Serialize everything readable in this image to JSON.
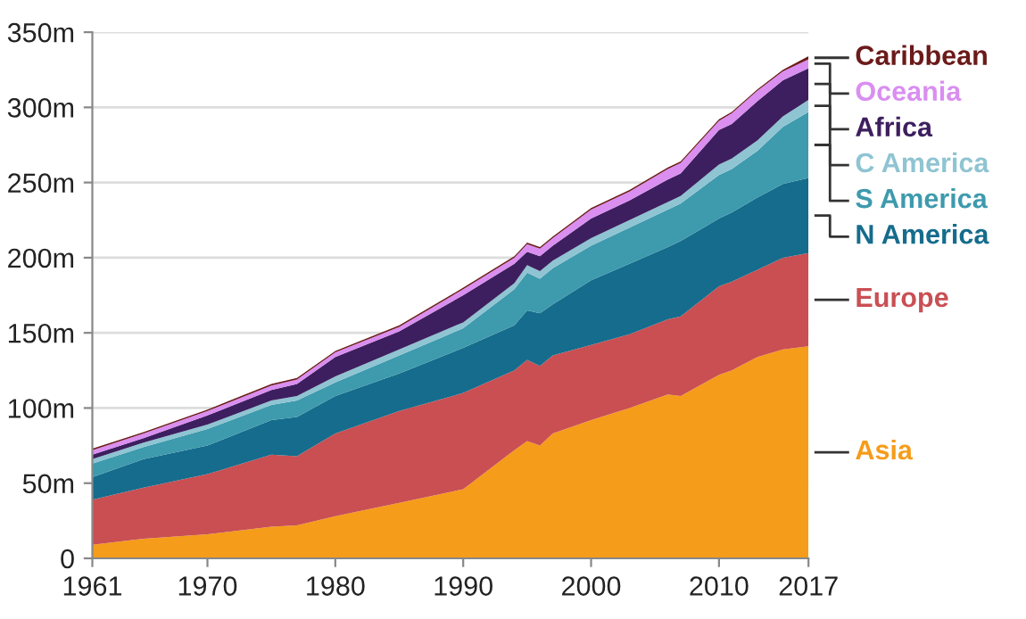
{
  "chart_data": {
    "type": "area",
    "stacked": true,
    "x": [
      1961,
      1965,
      1970,
      1975,
      1977,
      1980,
      1985,
      1990,
      1994,
      1995,
      1996,
      1997,
      2000,
      2003,
      2006,
      2007,
      2010,
      2011,
      2013,
      2015,
      2017
    ],
    "series": [
      {
        "name": "Asia",
        "color": "#f59c1a",
        "values": [
          9,
          13,
          16,
          21,
          22,
          28,
          37,
          46,
          72,
          78,
          75,
          83,
          92,
          100,
          109,
          108,
          122,
          125,
          134,
          139,
          141
        ]
      },
      {
        "name": "Europe",
        "color": "#c94f53",
        "values": [
          30,
          34,
          40,
          48,
          46,
          55,
          61,
          64,
          53,
          54,
          53,
          52,
          50,
          49,
          50,
          53,
          59,
          59,
          58,
          61,
          62
        ]
      },
      {
        "name": "N America",
        "color": "#156c8c",
        "values": [
          15,
          19,
          19,
          23,
          26,
          25,
          25,
          30,
          30,
          33,
          35,
          34,
          43,
          47,
          48,
          50,
          45,
          46,
          48,
          49,
          50
        ]
      },
      {
        "name": "S America",
        "color": "#3e9aad",
        "values": [
          9,
          8,
          11,
          10,
          11,
          9,
          12,
          13,
          24,
          25,
          23,
          24,
          23,
          24,
          25,
          25,
          29,
          29,
          31,
          38,
          44
        ]
      },
      {
        "name": "C America",
        "color": "#8fc4d2",
        "values": [
          3,
          3,
          3,
          3,
          3,
          4,
          4,
          4,
          4,
          5,
          5,
          5,
          5,
          5,
          5,
          5,
          7,
          7,
          7,
          7,
          8
        ]
      },
      {
        "name": "Africa",
        "color": "#3d1f5f",
        "values": [
          3,
          3,
          6,
          7,
          8,
          13,
          12,
          18,
          13,
          9,
          10,
          10,
          13,
          13,
          15,
          15,
          23,
          23,
          26,
          24,
          21
        ]
      },
      {
        "name": "Oceania",
        "color": "#d98ef0",
        "values": [
          3,
          3,
          3,
          3,
          3,
          3,
          3,
          4,
          4,
          5,
          5,
          5,
          6,
          6,
          7,
          7,
          6,
          7,
          7,
          6,
          6
        ]
      },
      {
        "name": "Caribbean",
        "color": "#6b1a1a",
        "values": [
          1,
          1,
          1,
          1,
          1,
          1,
          1,
          1,
          1,
          1,
          1,
          1,
          1,
          1,
          1,
          1,
          1,
          1,
          1,
          1,
          2
        ]
      }
    ],
    "xlim": [
      1961,
      2017
    ],
    "ylim": [
      0,
      350
    ],
    "xticks": [
      1961,
      1970,
      1980,
      1990,
      2000,
      2010,
      2017
    ],
    "yticks": [
      0,
      {
        "value": 50,
        "label": "50m"
      },
      {
        "value": 100,
        "label": "100m"
      },
      {
        "value": 150,
        "label": "150m"
      },
      {
        "value": 200,
        "label": "200m"
      },
      {
        "value": 250,
        "label": "250m"
      },
      {
        "value": 300,
        "label": "300m"
      },
      {
        "value": 350,
        "label": "350m"
      }
    ],
    "grid": "y",
    "legend": "right"
  }
}
